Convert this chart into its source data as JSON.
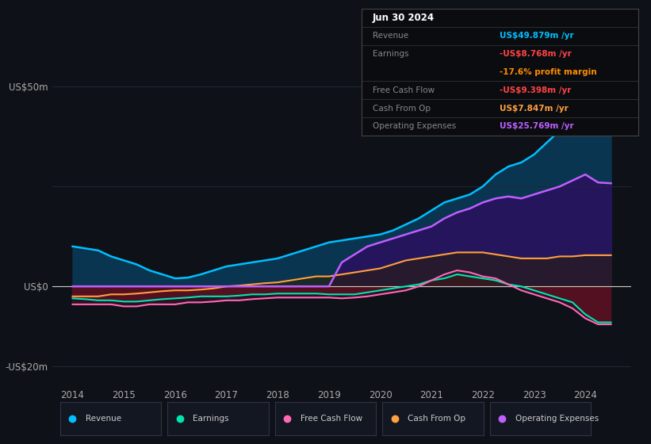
{
  "background_color": "#0e1117",
  "plot_bg_color": "#0e1117",
  "ylim": [
    -25,
    55
  ],
  "xlim": [
    2013.6,
    2024.9
  ],
  "ytick_vals": [
    -20,
    0,
    25,
    50
  ],
  "ytick_labels": [
    "-US$20m",
    "US$0",
    "",
    "US$50m"
  ],
  "xtick_vals": [
    2014,
    2015,
    2016,
    2017,
    2018,
    2019,
    2020,
    2021,
    2022,
    2023,
    2024
  ],
  "years": [
    2014.0,
    2014.25,
    2014.5,
    2014.75,
    2015.0,
    2015.25,
    2015.5,
    2015.75,
    2016.0,
    2016.25,
    2016.5,
    2016.75,
    2017.0,
    2017.25,
    2017.5,
    2017.75,
    2018.0,
    2018.25,
    2018.5,
    2018.75,
    2019.0,
    2019.25,
    2019.5,
    2019.75,
    2020.0,
    2020.25,
    2020.5,
    2020.75,
    2021.0,
    2021.25,
    2021.5,
    2021.75,
    2022.0,
    2022.25,
    2022.5,
    2022.75,
    2023.0,
    2023.25,
    2023.5,
    2023.75,
    2024.0,
    2024.25,
    2024.5
  ],
  "revenue": [
    10.0,
    9.5,
    9.0,
    7.5,
    6.5,
    5.5,
    4.0,
    3.0,
    2.0,
    2.2,
    3.0,
    4.0,
    5.0,
    5.5,
    6.0,
    6.5,
    7.0,
    8.0,
    9.0,
    10.0,
    11.0,
    11.5,
    12.0,
    12.5,
    13.0,
    14.0,
    15.5,
    17.0,
    19.0,
    21.0,
    22.0,
    23.0,
    25.0,
    28.0,
    30.0,
    31.0,
    33.0,
    36.0,
    39.0,
    43.0,
    46.0,
    49.0,
    50.0
  ],
  "earnings": [
    -3.0,
    -3.2,
    -3.5,
    -3.5,
    -3.8,
    -3.8,
    -3.5,
    -3.2,
    -3.0,
    -2.8,
    -2.5,
    -2.5,
    -2.5,
    -2.3,
    -2.0,
    -2.0,
    -1.8,
    -1.8,
    -1.8,
    -1.8,
    -2.0,
    -2.0,
    -2.0,
    -1.5,
    -1.0,
    -0.5,
    0.0,
    0.5,
    1.5,
    2.0,
    3.0,
    2.5,
    2.0,
    1.5,
    0.5,
    0.0,
    -1.0,
    -2.0,
    -3.0,
    -4.0,
    -7.0,
    -9.0,
    -9.0
  ],
  "free_cash_flow": [
    -4.5,
    -4.5,
    -4.5,
    -4.5,
    -5.0,
    -5.0,
    -4.5,
    -4.5,
    -4.5,
    -4.0,
    -4.0,
    -3.8,
    -3.5,
    -3.5,
    -3.2,
    -3.0,
    -2.8,
    -2.8,
    -2.8,
    -2.8,
    -2.8,
    -3.0,
    -2.8,
    -2.5,
    -2.0,
    -1.5,
    -1.0,
    0.0,
    1.5,
    3.0,
    4.0,
    3.5,
    2.5,
    2.0,
    0.5,
    -1.0,
    -2.0,
    -3.0,
    -4.0,
    -5.5,
    -8.0,
    -9.5,
    -9.5
  ],
  "cash_from_op": [
    -2.5,
    -2.5,
    -2.5,
    -2.0,
    -2.0,
    -1.8,
    -1.5,
    -1.2,
    -1.0,
    -1.0,
    -0.8,
    -0.5,
    0.0,
    0.2,
    0.5,
    0.8,
    1.0,
    1.5,
    2.0,
    2.5,
    2.5,
    3.0,
    3.5,
    4.0,
    4.5,
    5.5,
    6.5,
    7.0,
    7.5,
    8.0,
    8.5,
    8.5,
    8.5,
    8.0,
    7.5,
    7.0,
    7.0,
    7.0,
    7.5,
    7.5,
    7.8,
    7.8,
    7.8
  ],
  "operating_expenses": [
    0.0,
    0.0,
    0.0,
    0.0,
    0.0,
    0.0,
    0.0,
    0.0,
    0.0,
    0.0,
    0.0,
    0.0,
    0.0,
    0.0,
    0.0,
    0.0,
    0.0,
    0.0,
    0.0,
    0.0,
    0.0,
    6.0,
    8.0,
    10.0,
    11.0,
    12.0,
    13.0,
    14.0,
    15.0,
    17.0,
    18.5,
    19.5,
    21.0,
    22.0,
    22.5,
    22.0,
    23.0,
    24.0,
    25.0,
    26.5,
    28.0,
    26.0,
    25.8
  ],
  "revenue_color": "#00bfff",
  "earnings_color": "#00e5b0",
  "free_cash_flow_color": "#ff69b4",
  "cash_from_op_color": "#ffa040",
  "operating_expenses_color": "#bf5fff",
  "fill_revenue_color": "#0a3550",
  "fill_earnings_color": "#6b1010",
  "fill_op_exp_color": "#2a1060",
  "fill_fcf_neg_color": "#4a1030",
  "grid_color": "#252535",
  "text_color": "#aaaaaa",
  "zero_line_color": "#cccccc",
  "info_box": {
    "date": "Jun 30 2024",
    "revenue_val": "US$49.879m",
    "revenue_color": "#00bfff",
    "earnings_val": "-US$8.768m",
    "earnings_color": "#ff4444",
    "margin_val": "-17.6%",
    "margin_color": "#ff8c00",
    "fcf_val": "-US$9.398m",
    "fcf_color": "#ff4444",
    "cashop_val": "US$7.847m",
    "cashop_color": "#ffa040",
    "opex_val": "US$25.769m",
    "opex_color": "#bf5fff"
  },
  "legend_items": [
    {
      "label": "Revenue",
      "color": "#00bfff"
    },
    {
      "label": "Earnings",
      "color": "#00e5b0"
    },
    {
      "label": "Free Cash Flow",
      "color": "#ff69b4"
    },
    {
      "label": "Cash From Op",
      "color": "#ffa040"
    },
    {
      "label": "Operating Expenses",
      "color": "#bf5fff"
    }
  ]
}
